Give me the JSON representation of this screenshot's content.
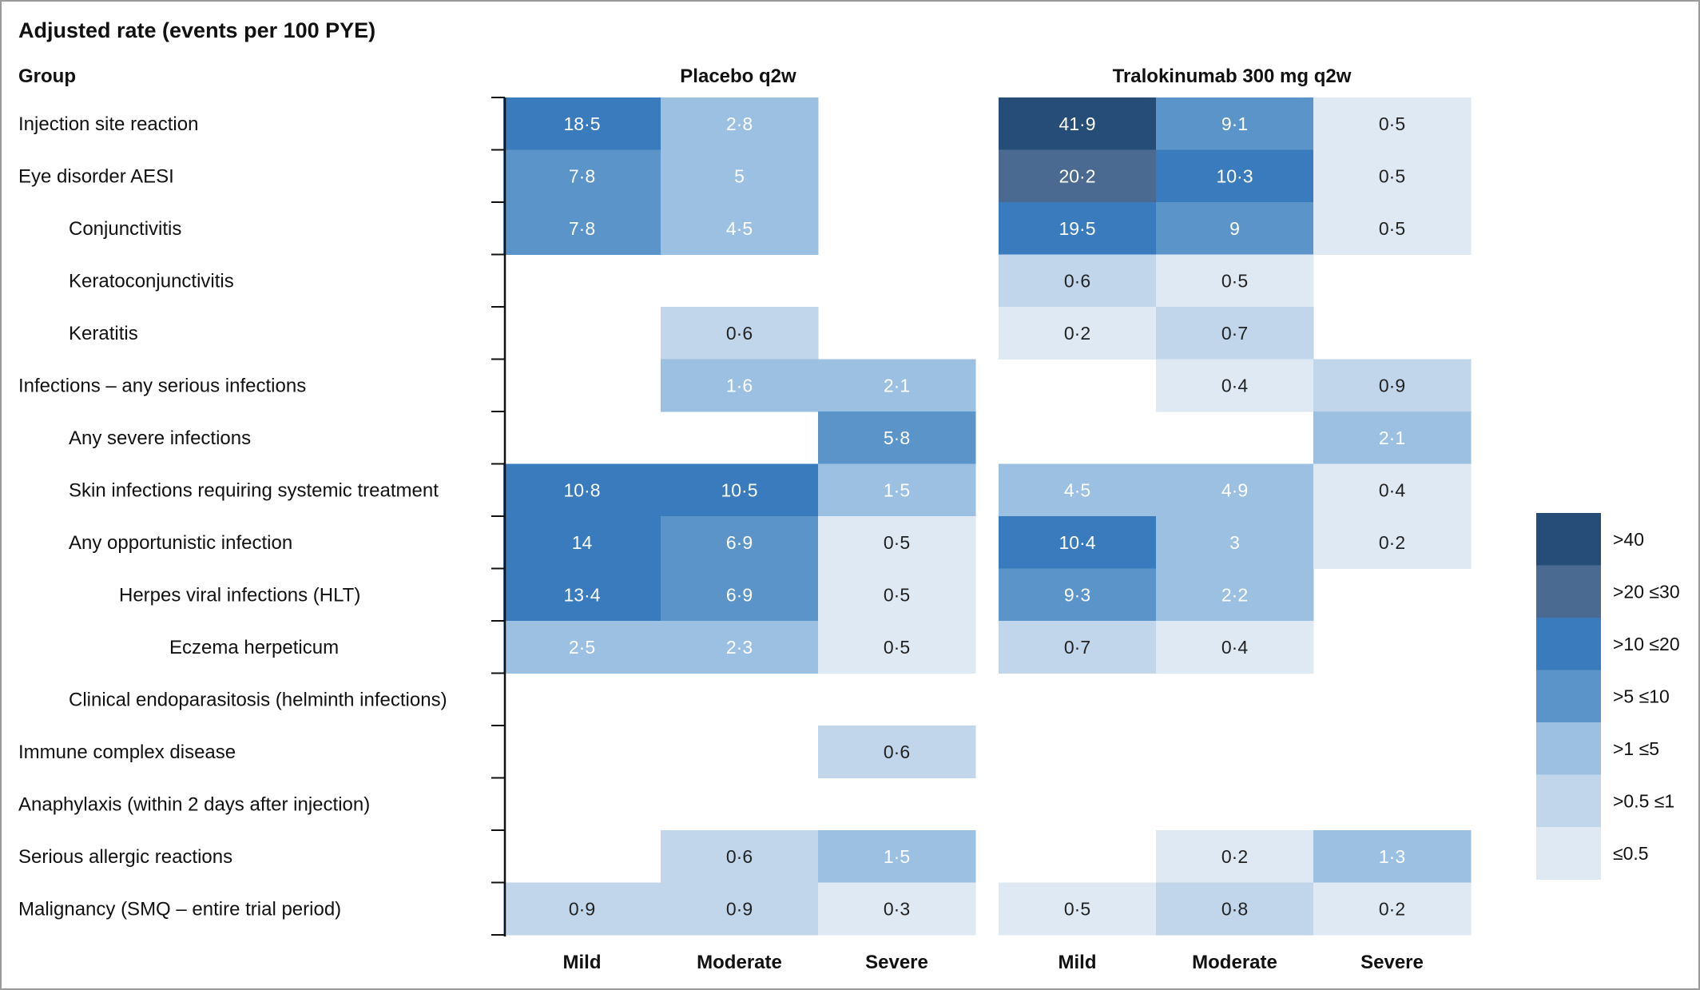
{
  "chart_data": {
    "type": "heatmap",
    "title": "Adjusted rate (events per 100 PYE)",
    "group_header": "Group",
    "panels": [
      {
        "name": "Placebo q2w",
        "columns": [
          "Mild",
          "Moderate",
          "Severe"
        ]
      },
      {
        "name": "Tralokinumab 300 mg q2w",
        "columns": [
          "Mild",
          "Moderate",
          "Severe"
        ]
      }
    ],
    "rows": [
      {
        "label": "Injection site reaction",
        "indent": 0,
        "values": [
          "18·5",
          "2·8",
          null,
          "41·9",
          "9·1",
          "0·5"
        ]
      },
      {
        "label": "Eye disorder AESI",
        "indent": 0,
        "values": [
          "7·8",
          "5",
          null,
          "20·2",
          "10·3",
          "0·5"
        ]
      },
      {
        "label": "Conjunctivitis",
        "indent": 1,
        "values": [
          "7·8",
          "4·5",
          null,
          "19·5",
          "9",
          "0·5"
        ]
      },
      {
        "label": "Keratoconjunctivitis",
        "indent": 1,
        "values": [
          null,
          null,
          null,
          "0·6",
          "0·5",
          null
        ]
      },
      {
        "label": "Keratitis",
        "indent": 1,
        "values": [
          null,
          "0·6",
          null,
          "0·2",
          "0·7",
          null
        ]
      },
      {
        "label": "Infections – any serious infections",
        "indent": 0,
        "values": [
          null,
          "1·6",
          "2·1",
          null,
          "0·4",
          "0·9"
        ]
      },
      {
        "label": "Any severe infections",
        "indent": 1,
        "values": [
          null,
          null,
          "5·8",
          null,
          null,
          "2·1"
        ]
      },
      {
        "label": "Skin infections requiring systemic treatment",
        "indent": 1,
        "values": [
          "10·8",
          "10·5",
          "1·5",
          "4·5",
          "4·9",
          "0·4"
        ]
      },
      {
        "label": "Any opportunistic infection",
        "indent": 1,
        "values": [
          "14",
          "6·9",
          "0·5",
          "10·4",
          "3",
          "0·2"
        ]
      },
      {
        "label": "Herpes viral infections (HLT)",
        "indent": 2,
        "values": [
          "13·4",
          "6·9",
          "0·5",
          "9·3",
          "2·2",
          null
        ]
      },
      {
        "label": "Eczema herpeticum",
        "indent": 3,
        "values": [
          "2·5",
          "2·3",
          "0·5",
          "0·7",
          "0·4",
          null
        ]
      },
      {
        "label": "Clinical endoparasitosis (helminth infections)",
        "indent": 1,
        "values": [
          null,
          null,
          null,
          null,
          null,
          null
        ]
      },
      {
        "label": "Immune complex disease",
        "indent": 0,
        "values": [
          null,
          null,
          "0·6",
          null,
          null,
          null
        ]
      },
      {
        "label": "Anaphylaxis (within 2 days after injection)",
        "indent": 0,
        "values": [
          null,
          null,
          null,
          null,
          null,
          null
        ]
      },
      {
        "label": "Serious allergic reactions",
        "indent": 0,
        "values": [
          null,
          "0·6",
          "1·5",
          null,
          "0·2",
          "1·3"
        ]
      },
      {
        "label": "Malignancy (SMQ – entire trial period)",
        "indent": 0,
        "values": [
          "0·9",
          "0·9",
          "0·3",
          "0·5",
          "0·8",
          "0·2"
        ]
      }
    ],
    "legend": [
      {
        "label": ">40",
        "color": "#264d78",
        "min": 40
      },
      {
        "label": ">20 ≤30",
        "color": "#4b6a91",
        "min": 20
      },
      {
        "label": ">10 ≤20",
        "color": "#3a7bbd",
        "min": 10
      },
      {
        "label": ">5 ≤10",
        "color": "#5b94c8",
        "min": 5
      },
      {
        "label": ">1 ≤5",
        "color": "#9cc0e2",
        "min": 1
      },
      {
        "label": ">0.5 ≤1",
        "color": "#c1d6eb",
        "min": 0.5
      },
      {
        "label": "≤0.5",
        "color": "#dfe9f3",
        "min": null
      }
    ]
  }
}
